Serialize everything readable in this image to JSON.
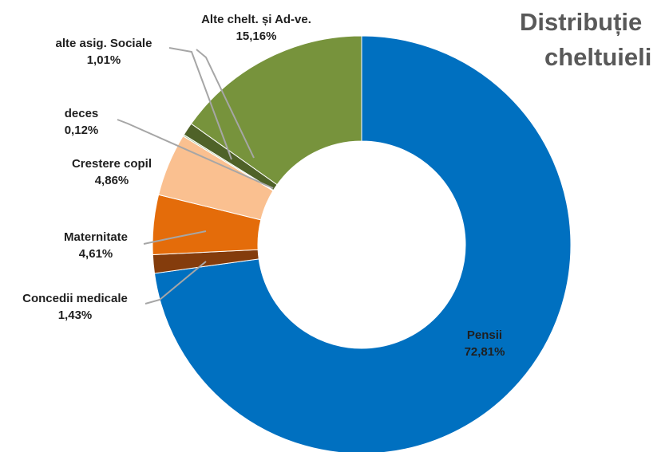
{
  "chart_data": {
    "type": "pie",
    "title_lines": [
      "Distribuție",
      "cheltuieli"
    ],
    "labels": [
      "Pensii",
      "Concedii medicale",
      "Maternitate",
      "Crestere copil",
      "deces",
      "alte asig. Sociale",
      "Alte chelt. și  Ad-ve."
    ],
    "values": [
      72.81,
      1.43,
      4.61,
      4.86,
      0.12,
      1.01,
      15.16
    ],
    "value_labels": [
      "72,81%",
      "1,43%",
      "4,61%",
      "4,86%",
      "0,12%",
      "1,01%",
      "15,16%"
    ],
    "colors": [
      "#0070C0",
      "#843C0C",
      "#E46C0A",
      "#FAC090",
      "#ABC69A",
      "#4F6228",
      "#77933C"
    ],
    "donut": true,
    "legend": "none"
  }
}
